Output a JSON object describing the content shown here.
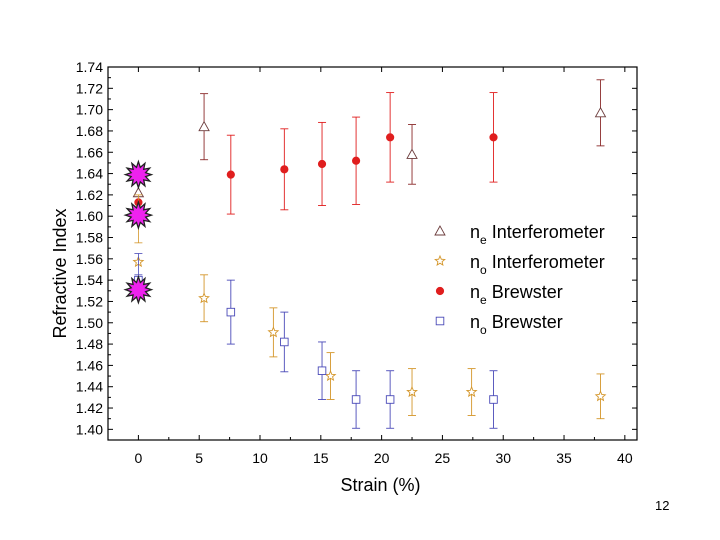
{
  "chart_data": {
    "type": "scatter",
    "xlabel": "Strain (%)",
    "ylabel": "Refractive Index",
    "xlim": [
      -2.5,
      41
    ],
    "ylim": [
      1.39,
      1.74
    ],
    "xticks": [
      0,
      5,
      10,
      15,
      20,
      25,
      30,
      35,
      40
    ],
    "yticks": [
      1.4,
      1.42,
      1.44,
      1.46,
      1.48,
      1.5,
      1.52,
      1.54,
      1.56,
      1.58,
      1.6,
      1.62,
      1.64,
      1.66,
      1.68,
      1.7,
      1.72,
      1.74
    ],
    "legend_position": "right",
    "series": [
      {
        "name": "ne Interferometer",
        "legend_main": "n",
        "legend_sub": "e",
        "legend_rest": " Interferometer",
        "marker": "triangle-open",
        "color": "#8b2b2b",
        "points": [
          {
            "x": 0,
            "y": 1.622,
            "err": 0.0
          },
          {
            "x": 5.4,
            "y": 1.684,
            "err": 0.031
          },
          {
            "x": 22.5,
            "y": 1.658,
            "err": 0.028
          },
          {
            "x": 38.0,
            "y": 1.697,
            "err": 0.031
          }
        ]
      },
      {
        "name": "no Interferometer",
        "legend_main": "n",
        "legend_sub": "o",
        "legend_rest": " Interferometer",
        "marker": "star-open",
        "color": "#d4962a",
        "points": [
          {
            "x": 0,
            "y": 1.557,
            "err": 0.0
          },
          {
            "x": 5.4,
            "y": 1.523,
            "err": 0.022
          },
          {
            "x": 11.1,
            "y": 1.491,
            "err": 0.023
          },
          {
            "x": 15.8,
            "y": 1.45,
            "err": 0.022
          },
          {
            "x": 22.5,
            "y": 1.435,
            "err": 0.022
          },
          {
            "x": 27.4,
            "y": 1.435,
            "err": 0.022
          },
          {
            "x": 38.0,
            "y": 1.431,
            "err": 0.021
          }
        ]
      },
      {
        "name": "ne Brewster",
        "legend_main": "n",
        "legend_sub": "e",
        "legend_rest": " Brewster",
        "marker": "circle-filled",
        "color": "#e01e1e",
        "points": [
          {
            "x": 0,
            "y": 1.613,
            "err": 0.0
          },
          {
            "x": 7.6,
            "y": 1.639,
            "err": 0.037
          },
          {
            "x": 12.0,
            "y": 1.644,
            "err": 0.038
          },
          {
            "x": 15.1,
            "y": 1.649,
            "err": 0.039
          },
          {
            "x": 17.9,
            "y": 1.652,
            "err": 0.041
          },
          {
            "x": 20.7,
            "y": 1.674,
            "err": 0.042
          },
          {
            "x": 29.2,
            "y": 1.674,
            "err": 0.042
          }
        ]
      },
      {
        "name": "no Brewster",
        "legend_main": "n",
        "legend_sub": "o",
        "legend_rest": " Brewster",
        "marker": "square-open",
        "color": "#4a4ab8",
        "points": [
          {
            "x": 0,
            "y": 1.54,
            "err": 0.0
          },
          {
            "x": 7.6,
            "y": 1.51,
            "err": 0.03
          },
          {
            "x": 12.0,
            "y": 1.482,
            "err": 0.028
          },
          {
            "x": 15.1,
            "y": 1.455,
            "err": 0.027
          },
          {
            "x": 17.9,
            "y": 1.428,
            "err": 0.027
          },
          {
            "x": 20.7,
            "y": 1.428,
            "err": 0.027
          },
          {
            "x": 29.2,
            "y": 1.428,
            "err": 0.027
          }
        ]
      }
    ],
    "highlight_markers": {
      "color": "#ee22ee",
      "points": [
        {
          "x": 0,
          "y": 1.639
        },
        {
          "x": 0,
          "y": 1.601
        },
        {
          "x": 0,
          "y": 1.531
        }
      ]
    }
  },
  "page_number": "12"
}
